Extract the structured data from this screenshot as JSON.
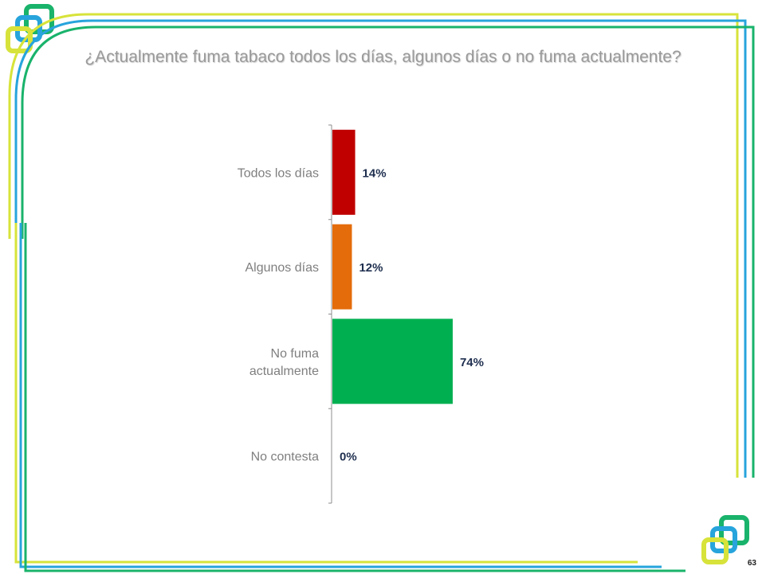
{
  "title": "¿Actualmente fuma tabaco todos los días, algunos días o no fuma actualmente?",
  "page_number": "63",
  "chart_data": {
    "type": "bar",
    "orientation": "horizontal",
    "categories": [
      [
        "Todos los días"
      ],
      [
        "Algunos días"
      ],
      [
        "No fuma",
        "actualmente"
      ],
      [
        "No contesta"
      ]
    ],
    "values": [
      14,
      12,
      74,
      0
    ],
    "value_labels": [
      "14%",
      "12%",
      "74%",
      "0%"
    ],
    "colors": [
      "#c00000",
      "#e46c0a",
      "#00b050",
      "#7f7f7f"
    ],
    "xlim": [
      0,
      100
    ],
    "title": "¿Actualmente fuma tabaco todos los días, algunos días o no fuma actualmente?",
    "grid": false,
    "legend": "none"
  },
  "frame_colors": {
    "yellow": "#d7e33a",
    "blue": "#27a4dc",
    "green": "#19b36b"
  }
}
